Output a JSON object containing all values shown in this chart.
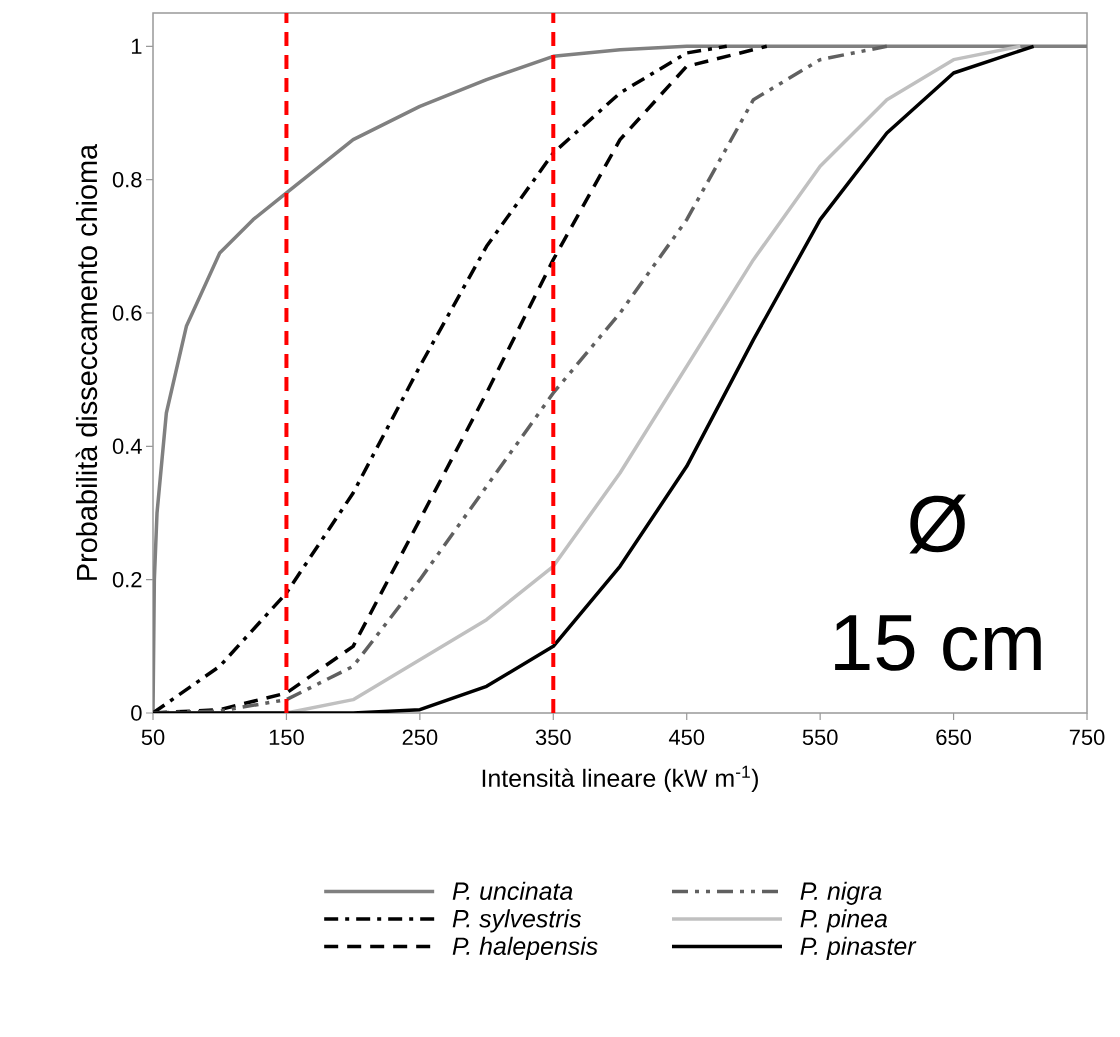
{
  "chart_data": {
    "type": "line",
    "xlabel": "Intensità lineare (kW m$^{-1}$)",
    "ylabel": "Probabilità disseccamento chioma",
    "xlim": [
      50,
      750
    ],
    "ylim": [
      0,
      1.05
    ],
    "xticks": [
      50,
      150,
      250,
      350,
      450,
      550,
      650,
      750
    ],
    "yticks": [
      0,
      0.2,
      0.4,
      0.6,
      0.8,
      1
    ],
    "grid": false,
    "legend": "bottom",
    "marker": "none",
    "annotations": [
      "Ø",
      "15 cm"
    ],
    "ref_lines": [
      {
        "axis": "x",
        "value": 150,
        "color": "#ff0000",
        "line_style": "dashed"
      },
      {
        "axis": "x",
        "value": 350,
        "color": "#ff0000",
        "line_style": "dashed"
      }
    ],
    "series": [
      {
        "name": "P. uncinata",
        "color": "#808080",
        "line_style": "solid",
        "x": [
          50,
          51,
          53,
          60,
          75,
          100,
          125,
          150,
          200,
          250,
          300,
          350,
          400,
          450,
          750
        ],
        "values": [
          0,
          0.2,
          0.3,
          0.45,
          0.58,
          0.69,
          0.74,
          0.78,
          0.86,
          0.91,
          0.95,
          0.985,
          0.995,
          1,
          1
        ]
      },
      {
        "name": "P. sylvestris",
        "color": "#000000",
        "line_style": "dashdot",
        "x": [
          50,
          100,
          150,
          200,
          250,
          300,
          350,
          400,
          450,
          480
        ],
        "values": [
          0,
          0.07,
          0.18,
          0.33,
          0.52,
          0.7,
          0.84,
          0.93,
          0.99,
          1
        ]
      },
      {
        "name": "P. halepensis",
        "color": "#000000",
        "line_style": "dashed",
        "x": [
          50,
          100,
          150,
          200,
          250,
          300,
          350,
          400,
          450,
          510
        ],
        "values": [
          0,
          0.005,
          0.03,
          0.1,
          0.29,
          0.48,
          0.68,
          0.86,
          0.97,
          1
        ]
      },
      {
        "name": "P. nigra",
        "color": "#606060",
        "line_style": "dashdotdot",
        "x": [
          50,
          100,
          150,
          200,
          250,
          300,
          350,
          400,
          450,
          500,
          550,
          600
        ],
        "values": [
          0,
          0.003,
          0.02,
          0.07,
          0.2,
          0.34,
          0.48,
          0.6,
          0.74,
          0.92,
          0.98,
          1
        ]
      },
      {
        "name": "P. pinea",
        "color": "#c0c0c0",
        "line_style": "solid",
        "x": [
          50,
          150,
          200,
          250,
          300,
          350,
          400,
          450,
          500,
          550,
          600,
          650,
          700
        ],
        "values": [
          0,
          0,
          0.02,
          0.08,
          0.14,
          0.22,
          0.36,
          0.52,
          0.68,
          0.82,
          0.92,
          0.98,
          1
        ]
      },
      {
        "name": "P. pinaster",
        "color": "#000000",
        "line_style": "solid",
        "x": [
          50,
          200,
          250,
          300,
          350,
          400,
          450,
          500,
          550,
          600,
          650,
          710
        ],
        "values": [
          0,
          0,
          0.005,
          0.04,
          0.1,
          0.22,
          0.37,
          0.56,
          0.74,
          0.87,
          0.96,
          1
        ]
      }
    ]
  }
}
